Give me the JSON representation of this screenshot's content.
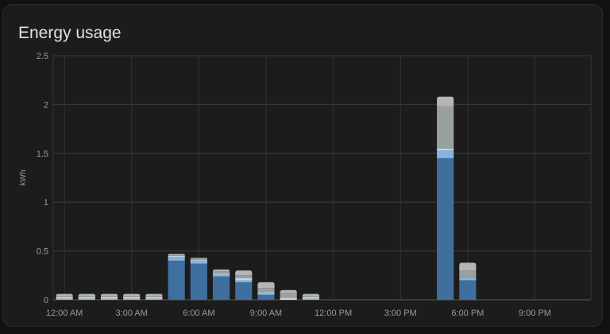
{
  "card": {
    "title": "Energy usage"
  },
  "colors": {
    "background": "#111111",
    "card": "#1c1c1c",
    "grid": "#333333",
    "grid_light": "#3c3c3c",
    "grid_base": "#5a5a5a",
    "text": "#9a9a9a",
    "title": "#e1e1e1"
  },
  "chart_data": {
    "type": "bar",
    "stacked": true,
    "ylabel": "kWh",
    "ylim": [
      0,
      2.5
    ],
    "yticks": [
      0,
      0.5,
      1,
      1.5,
      2,
      2.5
    ],
    "ytick_labels": [
      "0",
      "0.5",
      "1",
      "1.5",
      "2",
      "2.5"
    ],
    "x_domain_hours": [
      -0.5,
      23.5
    ],
    "xticks_hours": [
      0,
      3,
      6,
      9,
      12,
      15,
      18,
      21
    ],
    "xtick_labels": [
      "12:00 AM",
      "3:00 AM",
      "6:00 AM",
      "9:00 AM",
      "12:00 PM",
      "3:00 PM",
      "6:00 PM",
      "9:00 PM"
    ],
    "categories": [
      "12 AM",
      "1 AM",
      "2 AM",
      "3 AM",
      "4 AM",
      "5 AM",
      "6 AM",
      "7 AM",
      "8 AM",
      "9 AM",
      "10 AM",
      "11 AM",
      "12 PM",
      "1 PM",
      "2 PM",
      "3 PM",
      "4 PM",
      "5 PM",
      "6 PM",
      "7 PM",
      "8 PM",
      "9 PM",
      "10 PM",
      "11 PM"
    ],
    "series": [
      {
        "color": "#3f6f9f",
        "values": [
          0,
          0,
          0,
          0,
          0,
          0.4,
          0.37,
          0.24,
          0.18,
          0.05,
          0,
          0,
          0,
          0,
          0,
          0,
          0,
          1.45,
          0.2,
          0,
          0,
          0,
          0,
          0
        ]
      },
      {
        "color": "#86b4dc",
        "values": [
          0.01,
          0.01,
          0.01,
          0.01,
          0.01,
          0.04,
          0.03,
          0.02,
          0.02,
          0.02,
          0,
          0.01,
          0,
          0,
          0,
          0,
          0,
          0.08,
          0.03,
          0,
          0,
          0,
          0,
          0
        ]
      },
      {
        "color": "#c5d7e2",
        "values": [
          0.02,
          0.02,
          0.02,
          0.02,
          0.02,
          0.01,
          0.01,
          0.01,
          0.02,
          0.01,
          0.02,
          0.02,
          0,
          0,
          0,
          0,
          0,
          0.02,
          0,
          0,
          0,
          0,
          0,
          0
        ]
      },
      {
        "color": "#9a9f9f",
        "values": [
          0.01,
          0.01,
          0.01,
          0.01,
          0.01,
          0.01,
          0.01,
          0.02,
          0.03,
          0.04,
          0.05,
          0.01,
          0,
          0,
          0,
          0,
          0,
          0.43,
          0.07,
          0,
          0,
          0,
          0,
          0
        ]
      },
      {
        "color": "#b5b5b5",
        "values": [
          0.02,
          0.02,
          0.02,
          0.02,
          0.02,
          0.01,
          0.01,
          0.02,
          0.05,
          0.06,
          0.03,
          0.02,
          0,
          0,
          0,
          0,
          0,
          0.1,
          0.08,
          0,
          0,
          0,
          0,
          0
        ]
      }
    ]
  }
}
